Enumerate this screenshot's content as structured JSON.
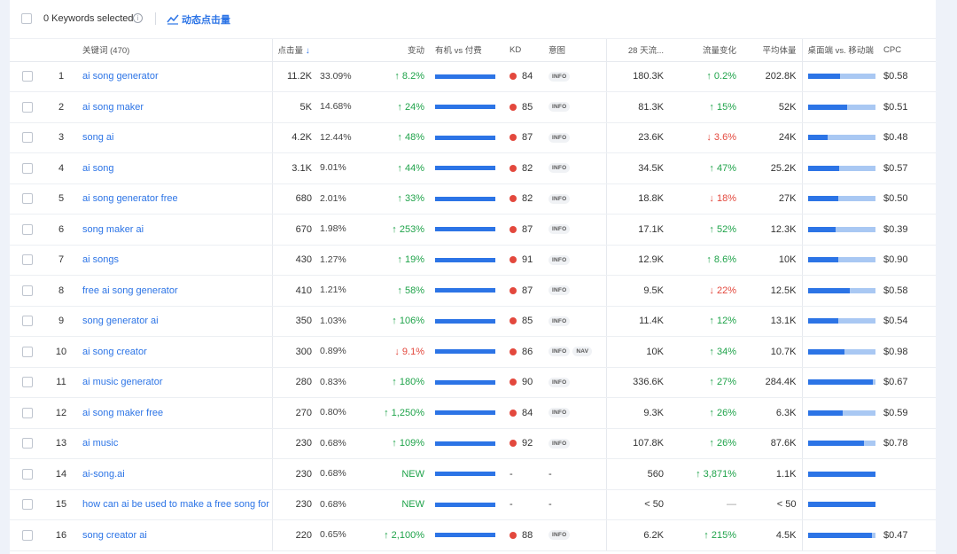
{
  "topbar": {
    "selected_label": "0 Keywords selected",
    "info_icon": "i",
    "action_label": "动态点击量"
  },
  "colors": {
    "accent": "#2c74e6",
    "up": "#1fa34a",
    "down": "#e3483d",
    "mobile": "#a9c8f3"
  },
  "columns": {
    "keyword": "关键词 (470)",
    "clicks": "点击量",
    "sort_icon": "↓",
    "change": "变动",
    "organic_paid": "有机 vs 付费",
    "kd": "KD",
    "intent": "意图",
    "traffic28": "28 天流...",
    "traffic_change": "流量变化",
    "avg_volume": "平均体量",
    "desktop_mobile": "桌面端 vs. 移动端",
    "cpc": "CPC"
  },
  "rows": [
    {
      "num": "1",
      "keyword": "ai song generator",
      "clicks": "11.2K",
      "pct": "33.09%",
      "pct_value": 33.09,
      "change": "↑ 8.2%",
      "change_dir": "up",
      "kd": "84",
      "intents": [
        "INFO"
      ],
      "traffic": "180.3K",
      "tchange": "↑ 0.2%",
      "tchange_dir": "up",
      "volume": "202.8K",
      "desktop_share": 0.48,
      "cpc": "$0.58"
    },
    {
      "num": "2",
      "keyword": "ai song maker",
      "clicks": "5K",
      "pct": "14.68%",
      "pct_value": 14.68,
      "change": "↑ 24%",
      "change_dir": "up",
      "kd": "85",
      "intents": [
        "INFO"
      ],
      "traffic": "81.3K",
      "tchange": "↑ 15%",
      "tchange_dir": "up",
      "volume": "52K",
      "desktop_share": 0.59,
      "cpc": "$0.51"
    },
    {
      "num": "3",
      "keyword": "song ai",
      "clicks": "4.2K",
      "pct": "12.44%",
      "pct_value": 12.44,
      "change": "↑ 48%",
      "change_dir": "up",
      "kd": "87",
      "intents": [
        "INFO"
      ],
      "traffic": "23.6K",
      "tchange": "↓ 3.6%",
      "tchange_dir": "down",
      "volume": "24K",
      "desktop_share": 0.3,
      "cpc": "$0.48"
    },
    {
      "num": "4",
      "keyword": "ai song",
      "clicks": "3.1K",
      "pct": "9.01%",
      "pct_value": 9.01,
      "change": "↑ 44%",
      "change_dir": "up",
      "kd": "82",
      "intents": [
        "INFO"
      ],
      "traffic": "34.5K",
      "tchange": "↑ 47%",
      "tchange_dir": "up",
      "volume": "25.2K",
      "desktop_share": 0.47,
      "cpc": "$0.57"
    },
    {
      "num": "5",
      "keyword": "ai song generator free",
      "clicks": "680",
      "pct": "2.01%",
      "pct_value": 2.01,
      "change": "↑ 33%",
      "change_dir": "up",
      "kd": "82",
      "intents": [
        "INFO"
      ],
      "traffic": "18.8K",
      "tchange": "↓ 18%",
      "tchange_dir": "down",
      "volume": "27K",
      "desktop_share": 0.46,
      "cpc": "$0.50"
    },
    {
      "num": "6",
      "keyword": "song maker ai",
      "clicks": "670",
      "pct": "1.98%",
      "pct_value": 1.98,
      "change": "↑ 253%",
      "change_dir": "up",
      "kd": "87",
      "intents": [
        "INFO"
      ],
      "traffic": "17.1K",
      "tchange": "↑ 52%",
      "tchange_dir": "up",
      "volume": "12.3K",
      "desktop_share": 0.42,
      "cpc": "$0.39"
    },
    {
      "num": "7",
      "keyword": "ai songs",
      "clicks": "430",
      "pct": "1.27%",
      "pct_value": 1.27,
      "change": "↑ 19%",
      "change_dir": "up",
      "kd": "91",
      "intents": [
        "INFO"
      ],
      "traffic": "12.9K",
      "tchange": "↑ 8.6%",
      "tchange_dir": "up",
      "volume": "10K",
      "desktop_share": 0.45,
      "cpc": "$0.90"
    },
    {
      "num": "8",
      "keyword": "free ai song generator",
      "clicks": "410",
      "pct": "1.21%",
      "pct_value": 1.21,
      "change": "↑ 58%",
      "change_dir": "up",
      "kd": "87",
      "intents": [
        "INFO"
      ],
      "traffic": "9.5K",
      "tchange": "↓ 22%",
      "tchange_dir": "down",
      "volume": "12.5K",
      "desktop_share": 0.62,
      "cpc": "$0.58"
    },
    {
      "num": "9",
      "keyword": "song generator ai",
      "clicks": "350",
      "pct": "1.03%",
      "pct_value": 1.03,
      "change": "↑ 106%",
      "change_dir": "up",
      "kd": "85",
      "intents": [
        "INFO"
      ],
      "traffic": "11.4K",
      "tchange": "↑ 12%",
      "tchange_dir": "up",
      "volume": "13.1K",
      "desktop_share": 0.46,
      "cpc": "$0.54"
    },
    {
      "num": "10",
      "keyword": "ai song creator",
      "clicks": "300",
      "pct": "0.89%",
      "pct_value": 0.89,
      "change": "↓ 9.1%",
      "change_dir": "down",
      "kd": "86",
      "intents": [
        "INFO",
        "NAV"
      ],
      "traffic": "10K",
      "tchange": "↑ 34%",
      "tchange_dir": "up",
      "volume": "10.7K",
      "desktop_share": 0.54,
      "cpc": "$0.98"
    },
    {
      "num": "11",
      "keyword": "ai music generator",
      "clicks": "280",
      "pct": "0.83%",
      "pct_value": 0.83,
      "change": "↑ 180%",
      "change_dir": "up",
      "kd": "90",
      "intents": [
        "INFO"
      ],
      "traffic": "336.6K",
      "tchange": "↑ 27%",
      "tchange_dir": "up",
      "volume": "284.4K",
      "desktop_share": 0.97,
      "cpc": "$0.67"
    },
    {
      "num": "12",
      "keyword": "ai song maker free",
      "clicks": "270",
      "pct": "0.80%",
      "pct_value": 0.8,
      "change": "↑ 1,250%",
      "change_dir": "up",
      "kd": "84",
      "intents": [
        "INFO"
      ],
      "traffic": "9.3K",
      "tchange": "↑ 26%",
      "tchange_dir": "up",
      "volume": "6.3K",
      "desktop_share": 0.52,
      "cpc": "$0.59"
    },
    {
      "num": "13",
      "keyword": "ai music",
      "clicks": "230",
      "pct": "0.68%",
      "pct_value": 0.68,
      "change": "↑ 109%",
      "change_dir": "up",
      "kd": "92",
      "intents": [
        "INFO"
      ],
      "traffic": "107.8K",
      "tchange": "↑ 26%",
      "tchange_dir": "up",
      "volume": "87.6K",
      "desktop_share": 0.83,
      "cpc": "$0.78"
    },
    {
      "num": "14",
      "keyword": "ai-song.ai",
      "clicks": "230",
      "pct": "0.68%",
      "pct_value": 0.68,
      "change": "NEW",
      "change_dir": "up",
      "kd": "-",
      "intents": [],
      "intent_text": "-",
      "traffic": "560",
      "tchange": "↑ 3,871%",
      "tchange_dir": "up",
      "volume": "1.1K",
      "desktop_share": 1.0,
      "cpc": "-"
    },
    {
      "num": "15",
      "keyword": "how can ai be used to make a free song for",
      "clicks": "230",
      "pct": "0.68%",
      "pct_value": 0.68,
      "change": "NEW",
      "change_dir": "up",
      "kd": "-",
      "intents": [],
      "intent_text": "-",
      "traffic": "< 50",
      "tchange": "—",
      "tchange_dir": "neutral",
      "volume": "< 50",
      "desktop_share": 1.0,
      "cpc": "-"
    },
    {
      "num": "16",
      "keyword": "song creator ai",
      "clicks": "220",
      "pct": "0.65%",
      "pct_value": 0.65,
      "change": "↑ 2,100%",
      "change_dir": "up",
      "kd": "88",
      "intents": [
        "INFO"
      ],
      "traffic": "6.2K",
      "tchange": "↑ 215%",
      "tchange_dir": "up",
      "volume": "4.5K",
      "desktop_share": 0.95,
      "cpc": "$0.47"
    }
  ]
}
